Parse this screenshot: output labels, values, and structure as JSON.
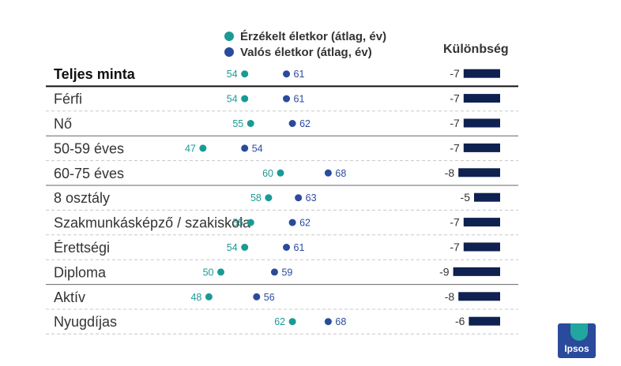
{
  "legend": {
    "perceived_label": "Érzékelt életkor (átlag, év)",
    "actual_label": "Valós életkor (átlag, év)",
    "difference_label": "Különbség"
  },
  "colors": {
    "perceived": "#1a9a94",
    "actual": "#2a4a9c",
    "bar": "#0e2150",
    "label_text": "#333333",
    "divider": "#666666",
    "dashed": "#c8c8c8"
  },
  "chart_data": {
    "type": "dot-plot",
    "categories": [
      "Teljes minta",
      "Férfi",
      "Nő",
      "50-59 éves",
      "60-75 éves",
      "8 osztály",
      "Szakmunkásképző / szakiskola",
      "Érettségi",
      "Diploma",
      "Aktív",
      "Nyugdíjas"
    ],
    "series": [
      {
        "name": "Érzékelt életkor (átlag, év)",
        "values": [
          54,
          54,
          55,
          47,
          60,
          58,
          55,
          54,
          50,
          48,
          62
        ]
      },
      {
        "name": "Valós életkor (átlag, év)",
        "values": [
          61,
          61,
          62,
          54,
          68,
          63,
          62,
          61,
          59,
          56,
          68
        ]
      }
    ],
    "difference": {
      "name": "Különbség",
      "values": [
        -7,
        -7,
        -7,
        -7,
        -8,
        -5,
        -7,
        -7,
        -9,
        -8,
        -6
      ]
    },
    "x_range": [
      40,
      75
    ],
    "separators_after": [
      0,
      2,
      4,
      8
    ],
    "emphasized_rows": [
      0
    ]
  },
  "logo": {
    "text": "Ipsos"
  }
}
